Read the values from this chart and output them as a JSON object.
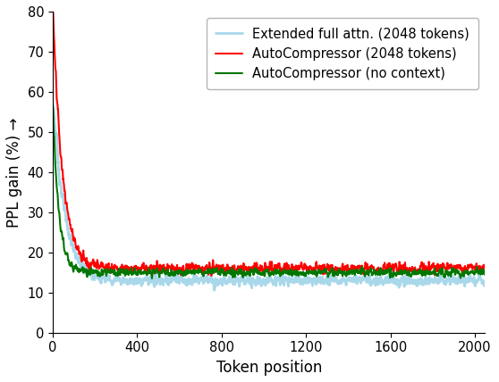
{
  "title": "",
  "xlabel": "Token position",
  "ylabel": "PPL gain (%) →",
  "xlim": [
    0,
    2048
  ],
  "ylim": [
    0,
    80
  ],
  "xticks": [
    0,
    400,
    800,
    1200,
    1600,
    2000
  ],
  "yticks": [
    0,
    10,
    20,
    30,
    40,
    50,
    60,
    70,
    80
  ],
  "lines": [
    {
      "label": "Extended full attn. (2048 tokens)",
      "color": "#a8d8ea",
      "linewidth": 2.0,
      "start_x": 5,
      "start_val": 56,
      "decay_b": 0.018,
      "end_val": 13.0,
      "noise": 1.2,
      "noise_scale_early": 3.0
    },
    {
      "label": "AutoCompressor (2048 tokens)",
      "color": "#ff0000",
      "linewidth": 1.5,
      "start_x": 1,
      "start_val": 80,
      "decay_b": 0.022,
      "end_val": 16.0,
      "noise": 1.2,
      "noise_scale_early": 2.0
    },
    {
      "label": "AutoCompressor (no context)",
      "color": "#007700",
      "linewidth": 1.5,
      "start_x": 1,
      "start_val": 56,
      "decay_b": 0.035,
      "end_val": 15.0,
      "noise": 0.9,
      "noise_scale_early": 1.5
    }
  ],
  "legend_fontsize": 10.5,
  "axis_fontsize": 12,
  "tick_fontsize": 10.5,
  "figure_facecolor": "#ffffff",
  "axes_facecolor": "#ffffff"
}
